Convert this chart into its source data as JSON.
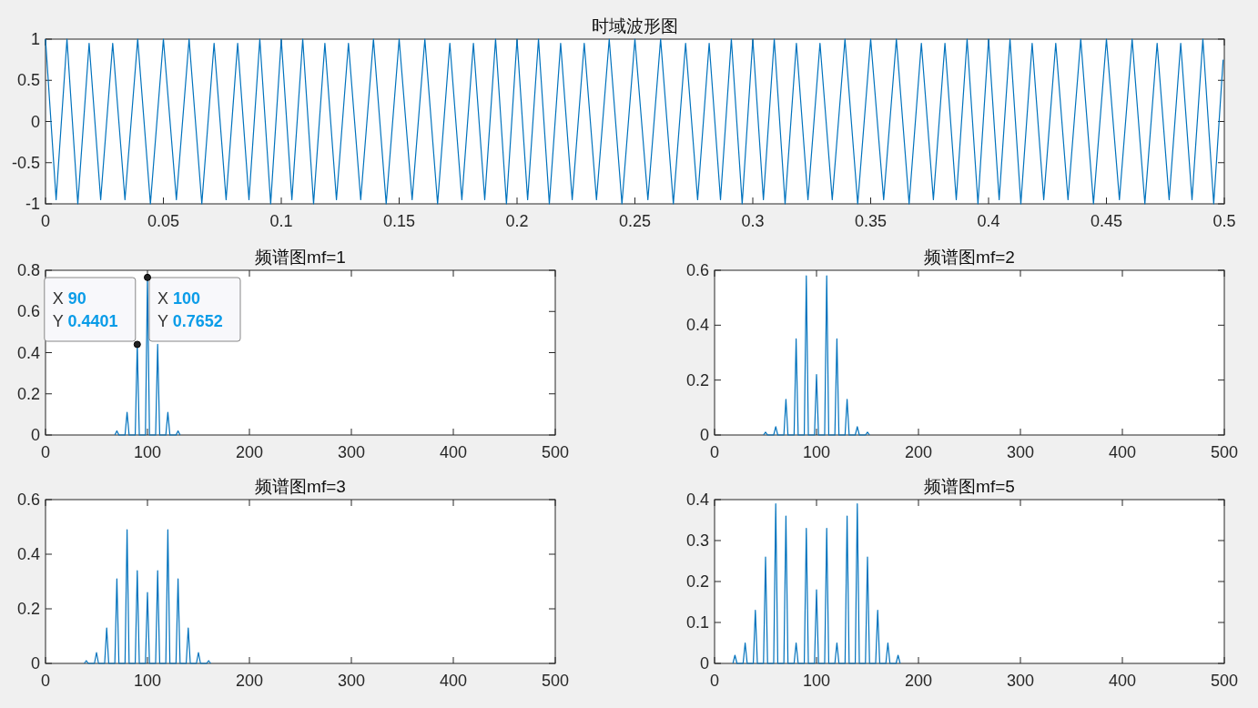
{
  "chart_data": [
    {
      "type": "line",
      "title": "时域波形图",
      "xlim": [
        0,
        0.5
      ],
      "xticks": [
        0,
        0.05,
        0.1,
        0.15,
        0.2,
        0.25,
        0.3,
        0.35,
        0.4,
        0.45,
        0.5
      ],
      "ylim": [
        -1,
        1
      ],
      "yticks": [
        -1,
        -0.5,
        0,
        0.5,
        1
      ],
      "series": [
        {
          "color": "#0072bd",
          "x": [
            0,
            0.0045,
            0.0091,
            0.0137,
            0.0185,
            0.0234,
            0.0285,
            0.0337,
            0.0391,
            0.0445,
            0.05,
            0.0555,
            0.0609,
            0.0663,
            0.0715,
            0.0766,
            0.0815,
            0.0863,
            0.0909,
            0.0955,
            0.1,
            0.1045,
            0.1091,
            0.1137,
            0.1185,
            0.1234,
            0.1285,
            0.1337,
            0.1391,
            0.1445,
            0.15,
            0.1555,
            0.1609,
            0.1663,
            0.1715,
            0.1766,
            0.1815,
            0.1863,
            0.1909,
            0.1955,
            0.2,
            0.2045,
            0.2091,
            0.2137,
            0.2185,
            0.2234,
            0.2285,
            0.2337,
            0.2391,
            0.2445,
            0.25,
            0.2555,
            0.2609,
            0.2663,
            0.2715,
            0.2766,
            0.2815,
            0.2863,
            0.2909,
            0.2955,
            0.3,
            0.3045,
            0.3091,
            0.3137,
            0.3185,
            0.3234,
            0.3285,
            0.3337,
            0.3391,
            0.3445,
            0.35,
            0.3555,
            0.3609,
            0.3663,
            0.3715,
            0.3766,
            0.3815,
            0.3863,
            0.3909,
            0.3955,
            0.4,
            0.4045,
            0.4091,
            0.4137,
            0.4185,
            0.4234,
            0.4285,
            0.4337,
            0.4391,
            0.4445,
            0.45,
            0.4555,
            0.4609,
            0.4663,
            0.4715,
            0.4766,
            0.4815,
            0.4863,
            0.4909,
            0.4955,
            0.4995
          ],
          "values": [
            1,
            -0.95,
            1,
            -1,
            0.95,
            -0.95,
            0.95,
            -0.95,
            1,
            -1,
            1,
            -0.95,
            1,
            -1,
            0.95,
            -0.95,
            0.95,
            -0.95,
            1,
            -1,
            1,
            -0.95,
            1,
            -1,
            0.95,
            -0.95,
            0.95,
            -0.95,
            1,
            -1,
            1,
            -0.95,
            1,
            -1,
            0.95,
            -0.95,
            0.95,
            -0.95,
            1,
            -1,
            1,
            -0.95,
            1,
            -1,
            0.95,
            -0.95,
            0.95,
            -0.95,
            1,
            -1,
            1,
            -0.95,
            1,
            -1,
            0.95,
            -0.95,
            0.95,
            -0.95,
            1,
            -1,
            1,
            -0.95,
            1,
            -1,
            0.95,
            -0.95,
            0.95,
            -0.95,
            1,
            -1,
            1,
            -0.95,
            1,
            -1,
            0.95,
            -0.95,
            0.95,
            -0.95,
            1,
            -1,
            1,
            -0.95,
            1,
            -1,
            0.95,
            -0.95,
            0.95,
            -0.95,
            1,
            -1,
            1,
            -0.95,
            1,
            -1,
            0.95,
            -0.95,
            0.95,
            -0.95,
            1,
            -1,
            0.75
          ]
        }
      ]
    },
    {
      "type": "line",
      "title": "频谱图mf=1",
      "xlim": [
        0,
        500
      ],
      "xticks": [
        0,
        100,
        200,
        300,
        400,
        500
      ],
      "ylim": [
        0,
        0.8
      ],
      "yticks": [
        0,
        0.2,
        0.4,
        0.6,
        0.8
      ],
      "annotations": [
        {
          "text": "X 90\nY 0.4401",
          "x": 90,
          "y": 0.4401
        },
        {
          "text": "X 100\nY 0.7652",
          "x": 100,
          "y": 0.7652
        }
      ],
      "series": [
        {
          "color": "#0072bd",
          "x": [
            68,
            70,
            72,
            78,
            80,
            82,
            88,
            90,
            92,
            98,
            100,
            102,
            108,
            110,
            112,
            118,
            120,
            122,
            128,
            130,
            132
          ],
          "values": [
            0,
            0.02,
            0,
            0,
            0.11,
            0,
            0,
            0.4401,
            0,
            0,
            0.7652,
            0,
            0,
            0.44,
            0,
            0,
            0.11,
            0,
            0,
            0.02,
            0
          ]
        }
      ]
    },
    {
      "type": "line",
      "title": "频谱图mf=2",
      "xlim": [
        0,
        500
      ],
      "xticks": [
        0,
        100,
        200,
        300,
        400,
        500
      ],
      "ylim": [
        0,
        0.6
      ],
      "yticks": [
        0,
        0.2,
        0.4,
        0.6
      ],
      "series": [
        {
          "color": "#0072bd",
          "x": [
            48,
            50,
            52,
            58,
            60,
            62,
            68,
            70,
            72,
            78,
            80,
            82,
            88,
            90,
            92,
            98,
            100,
            102,
            108,
            110,
            112,
            118,
            120,
            122,
            128,
            130,
            132,
            138,
            140,
            142,
            148,
            150,
            152
          ],
          "values": [
            0,
            0.01,
            0,
            0,
            0.03,
            0,
            0,
            0.13,
            0,
            0,
            0.35,
            0,
            0,
            0.58,
            0,
            0,
            0.22,
            0,
            0,
            0.58,
            0,
            0,
            0.35,
            0,
            0,
            0.13,
            0,
            0,
            0.03,
            0,
            0,
            0.01,
            0
          ]
        }
      ]
    },
    {
      "type": "line",
      "title": "频谱图mf=3",
      "xlim": [
        0,
        500
      ],
      "xticks": [
        0,
        100,
        200,
        300,
        400,
        500
      ],
      "ylim": [
        0,
        0.6
      ],
      "yticks": [
        0,
        0.2,
        0.4,
        0.6
      ],
      "series": [
        {
          "color": "#0072bd",
          "x": [
            38,
            40,
            42,
            48,
            50,
            52,
            58,
            60,
            62,
            68,
            70,
            72,
            78,
            80,
            82,
            88,
            90,
            92,
            98,
            100,
            102,
            108,
            110,
            112,
            118,
            120,
            122,
            128,
            130,
            132,
            138,
            140,
            142,
            148,
            150,
            152,
            158,
            160,
            162
          ],
          "values": [
            0,
            0.01,
            0,
            0,
            0.04,
            0,
            0,
            0.13,
            0,
            0,
            0.31,
            0,
            0,
            0.49,
            0,
            0,
            0.34,
            0,
            0,
            0.26,
            0,
            0,
            0.34,
            0,
            0,
            0.49,
            0,
            0,
            0.31,
            0,
            0,
            0.13,
            0,
            0,
            0.04,
            0,
            0,
            0.01,
            0
          ]
        }
      ]
    },
    {
      "type": "line",
      "title": "频谱图mf=5",
      "xlim": [
        0,
        500
      ],
      "xticks": [
        0,
        100,
        200,
        300,
        400,
        500
      ],
      "ylim": [
        0,
        0.4
      ],
      "yticks": [
        0,
        0.1,
        0.2,
        0.3,
        0.4
      ],
      "series": [
        {
          "color": "#0072bd",
          "x": [
            18,
            20,
            22,
            28,
            30,
            32,
            38,
            40,
            42,
            48,
            50,
            52,
            58,
            60,
            62,
            68,
            70,
            72,
            78,
            80,
            82,
            88,
            90,
            92,
            98,
            100,
            102,
            108,
            110,
            112,
            118,
            120,
            122,
            128,
            130,
            132,
            138,
            140,
            142,
            148,
            150,
            152,
            158,
            160,
            162,
            168,
            170,
            172,
            178,
            180,
            182
          ],
          "values": [
            0,
            0.02,
            0,
            0,
            0.05,
            0,
            0,
            0.13,
            0,
            0,
            0.26,
            0,
            0,
            0.39,
            0,
            0,
            0.36,
            0,
            0,
            0.05,
            0,
            0,
            0.33,
            0,
            0,
            0.18,
            0,
            0,
            0.33,
            0,
            0,
            0.05,
            0,
            0,
            0.36,
            0,
            0,
            0.39,
            0,
            0,
            0.26,
            0,
            0,
            0.13,
            0,
            0,
            0.05,
            0,
            0,
            0.02,
            0
          ]
        }
      ]
    }
  ]
}
